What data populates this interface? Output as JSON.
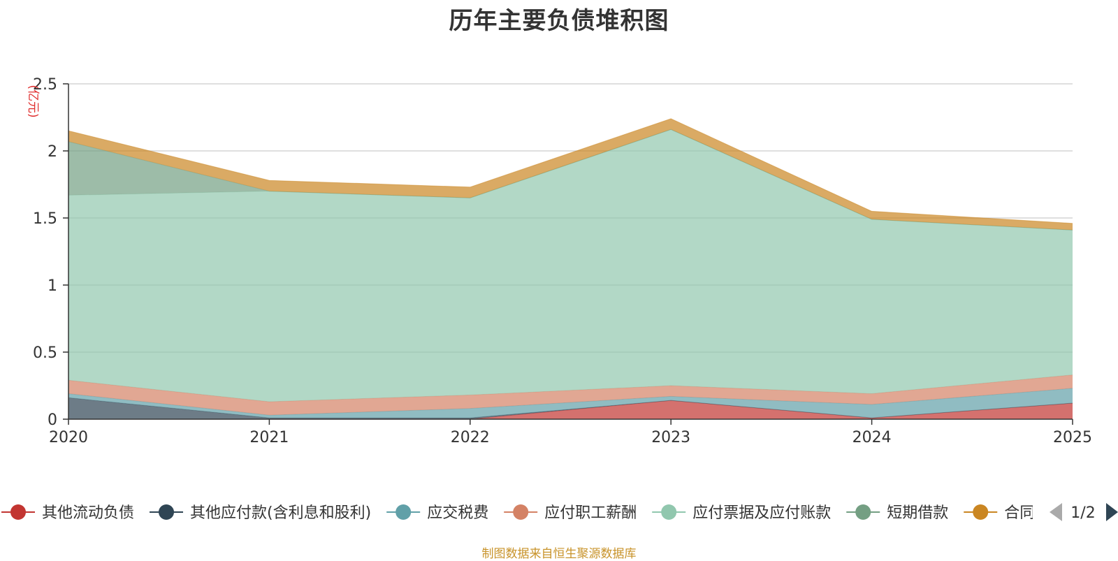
{
  "chart_data": {
    "type": "area",
    "stacked": true,
    "title": "历年主要负债堆积图",
    "ylabel": "(亿元)",
    "xlabel": "",
    "x": [
      "2020",
      "2021",
      "2022",
      "2023",
      "2024",
      "2025"
    ],
    "ylim": [
      0,
      2.5
    ],
    "yticks": [
      "0",
      "0.5",
      "1",
      "1.5",
      "2",
      "2.5"
    ],
    "grid": true,
    "series": [
      {
        "name": "其他流动负债",
        "color": "#c23531",
        "values": [
          0.0,
          0.0,
          0.0,
          0.14,
          0.01,
          0.12
        ]
      },
      {
        "name": "其他应付款(含利息和股利)",
        "color": "#2f4554",
        "values": [
          0.16,
          0.01,
          0.01,
          0.0,
          0.0,
          0.0
        ]
      },
      {
        "name": "应交税费",
        "color": "#61a0a8",
        "values": [
          0.03,
          0.02,
          0.07,
          0.03,
          0.1,
          0.11
        ]
      },
      {
        "name": "应付职工薪酬",
        "color": "#d48265",
        "values": [
          0.1,
          0.1,
          0.1,
          0.08,
          0.08,
          0.1
        ]
      },
      {
        "name": "应付票据及应付账款",
        "color": "#91c7ae",
        "values": [
          1.38,
          1.57,
          1.47,
          1.91,
          1.3,
          1.08
        ]
      },
      {
        "name": "短期借款",
        "color": "#749f83",
        "values": [
          0.4,
          0.0,
          0.0,
          0.0,
          0.0,
          0.0
        ]
      },
      {
        "name": "合同负债",
        "color": "#ca8622",
        "values": [
          0.08,
          0.08,
          0.08,
          0.08,
          0.06,
          0.05
        ]
      }
    ],
    "legend": {
      "position": "bottom",
      "page_label": "1/2"
    }
  },
  "source_note": "制图数据来自恒生聚源数据库"
}
